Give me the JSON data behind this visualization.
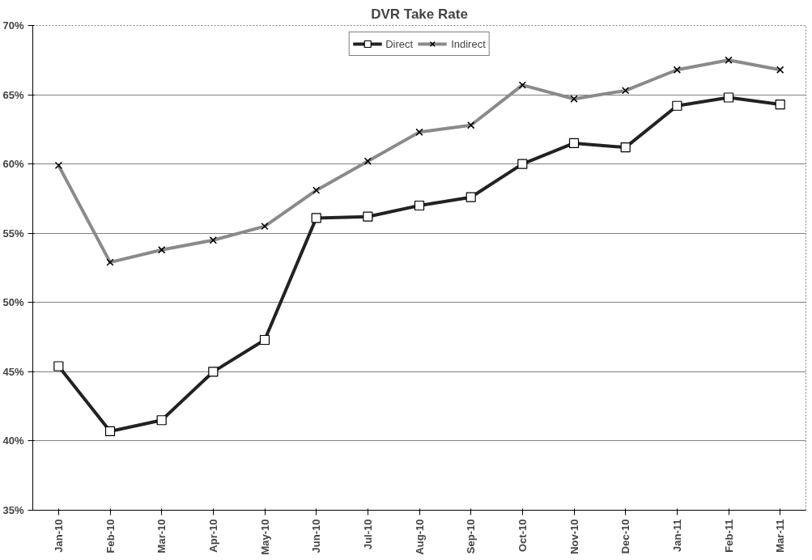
{
  "chart_data": {
    "type": "line",
    "title": "DVR Take Rate",
    "categories": [
      "Jan-10",
      "Feb-10",
      "Mar-10",
      "Apr-10",
      "May-10",
      "Jun-10",
      "Jul-10",
      "Aug-10",
      "Sep-10",
      "Oct-10",
      "Nov-10",
      "Dec-10",
      "Jan-11",
      "Feb-11",
      "Mar-11"
    ],
    "series": [
      {
        "name": "Direct",
        "color": "#222222",
        "marker": "square",
        "values": [
          45.4,
          40.7,
          41.5,
          45.0,
          47.3,
          56.1,
          56.2,
          57.0,
          57.6,
          60.0,
          61.5,
          61.2,
          64.2,
          64.8,
          64.3
        ]
      },
      {
        "name": "Indirect",
        "color": "#8a8a8a",
        "marker": "cross",
        "values": [
          59.9,
          52.9,
          53.8,
          54.5,
          55.5,
          58.1,
          60.2,
          62.3,
          62.8,
          65.7,
          64.7,
          65.3,
          66.8,
          67.5,
          66.8
        ]
      }
    ],
    "ylim": [
      35,
      70
    ],
    "yticks": [
      {
        "value": 35,
        "label": "35%"
      },
      {
        "value": 40,
        "label": "40%"
      },
      {
        "value": 45,
        "label": "45%"
      },
      {
        "value": 50,
        "label": "50%"
      },
      {
        "value": 55,
        "label": "55%"
      },
      {
        "value": 60,
        "label": "60%"
      },
      {
        "value": 65,
        "label": "65%"
      },
      {
        "value": 70,
        "label": "70%"
      }
    ],
    "grid": "y",
    "legend": "top",
    "line_style": "solid"
  }
}
